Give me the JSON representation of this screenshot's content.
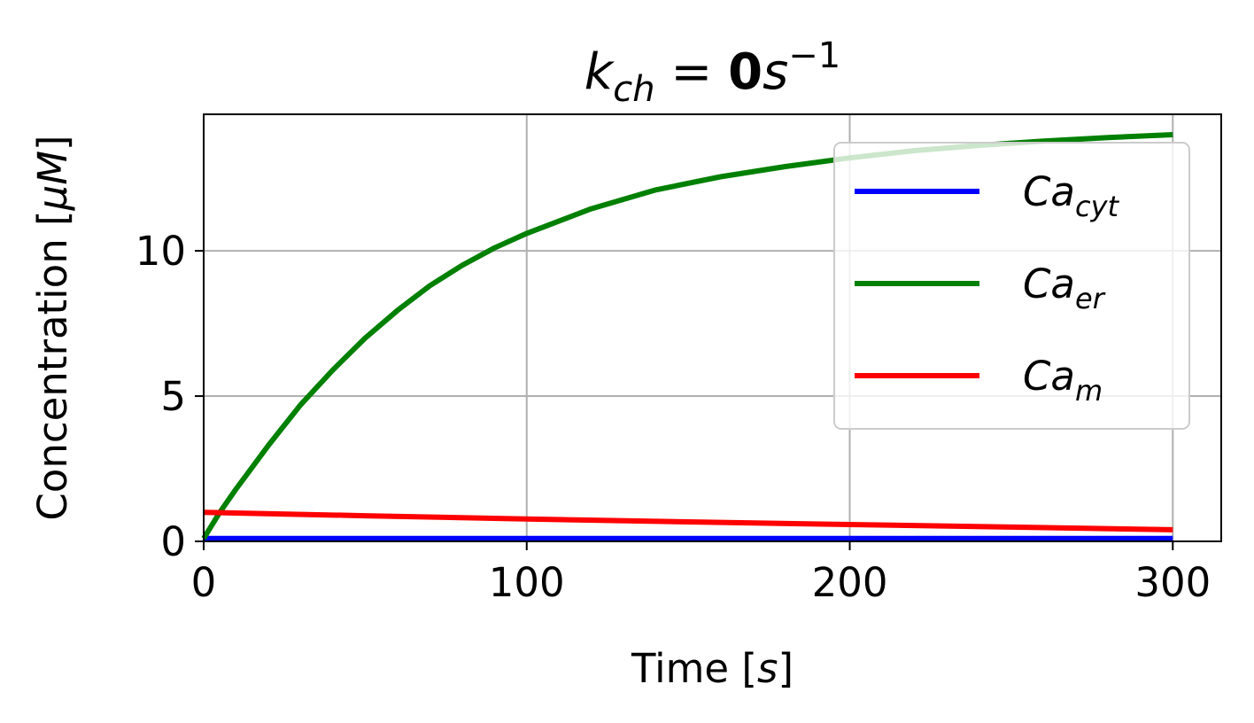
{
  "chart_data": {
    "type": "line",
    "title": {
      "k": "k",
      "k_sub": "ch",
      "eq": " = ",
      "value": "0",
      "unit": "s",
      "unit_sup": "−1"
    },
    "xlabel": {
      "text": "Time [",
      "unit": "s",
      "close": "]"
    },
    "ylabel": {
      "text": "Concentration [",
      "unit": "μM",
      "close": "]"
    },
    "xlim": [
      0,
      315
    ],
    "ylim": [
      0,
      14.7
    ],
    "xticks": [
      0,
      100,
      200,
      300
    ],
    "xtick_labels": [
      "0",
      "100",
      "200",
      "300"
    ],
    "yticks": [
      0,
      5,
      10
    ],
    "ytick_labels": [
      "0",
      "5",
      "10"
    ],
    "grid": true,
    "legend_position": "upper-right",
    "series": [
      {
        "key": "cyt",
        "name": "Ca",
        "name_sub": "cyt",
        "color": "#0000ff",
        "x": [
          0,
          50,
          100,
          150,
          200,
          250,
          300
        ],
        "y": [
          0.1,
          0.1,
          0.1,
          0.1,
          0.1,
          0.1,
          0.1
        ]
      },
      {
        "key": "er",
        "name": "Ca",
        "name_sub": "er",
        "color": "#008000",
        "x": [
          0,
          5,
          10,
          20,
          30,
          40,
          50,
          60,
          70,
          80,
          90,
          100,
          120,
          140,
          160,
          180,
          200,
          220,
          240,
          260,
          280,
          300
        ],
        "y": [
          0.1,
          1.0,
          1.8,
          3.3,
          4.7,
          5.9,
          7.0,
          7.95,
          8.8,
          9.5,
          10.1,
          10.6,
          11.45,
          12.1,
          12.55,
          12.9,
          13.2,
          13.45,
          13.63,
          13.78,
          13.9,
          14.0
        ]
      },
      {
        "key": "m",
        "name": "Ca",
        "name_sub": "m",
        "color": "#ff0000",
        "x": [
          0,
          50,
          100,
          150,
          200,
          250,
          300
        ],
        "y": [
          1.0,
          0.88,
          0.77,
          0.67,
          0.58,
          0.49,
          0.4
        ]
      }
    ]
  }
}
